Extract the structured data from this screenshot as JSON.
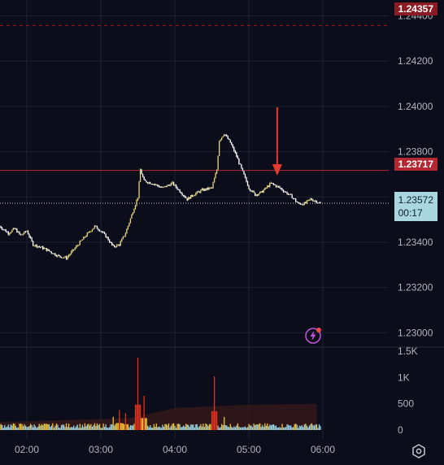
{
  "chart_data": {
    "type": "candlestick",
    "price_axis": {
      "ticks": [
        "1.24400",
        "1.24200",
        "1.24000",
        "1.23800",
        "1.23600",
        "1.23400",
        "1.23200",
        "1.23000"
      ],
      "range": [
        1.2294,
        1.2447
      ]
    },
    "time_axis": {
      "ticks": [
        "02:00",
        "03:00",
        "04:00",
        "05:00",
        "06:00"
      ]
    },
    "volume_axis": {
      "ticks": [
        "1.5K",
        "1K",
        "500",
        "0"
      ],
      "range": [
        0,
        1500
      ]
    },
    "price_labels": {
      "top": "1.24357",
      "level": "1.23717",
      "last": "1.23572",
      "countdown": "00:17"
    },
    "level_values": {
      "top": 1.24357,
      "level": 1.23717,
      "last": 1.23572
    },
    "close_path": [
      [
        "01:38",
        1.2347
      ],
      [
        "01:45",
        1.2344
      ],
      [
        "01:50",
        1.2346
      ],
      [
        "01:55",
        1.2343
      ],
      [
        "02:00",
        1.2345
      ],
      [
        "02:05",
        1.2339
      ],
      [
        "02:15",
        1.2337
      ],
      [
        "02:25",
        1.2334
      ],
      [
        "02:32",
        1.2333
      ],
      [
        "02:40",
        1.2338
      ],
      [
        "02:48",
        1.2343
      ],
      [
        "02:55",
        1.2347
      ],
      [
        "03:00",
        1.2345
      ],
      [
        "03:05",
        1.2342
      ],
      [
        "03:10",
        1.2338
      ],
      [
        "03:15",
        1.2339
      ],
      [
        "03:20",
        1.2344
      ],
      [
        "03:25",
        1.2352
      ],
      [
        "03:30",
        1.236
      ],
      [
        "03:32",
        1.2372
      ],
      [
        "03:35",
        1.2367
      ],
      [
        "03:42",
        1.2366
      ],
      [
        "03:50",
        1.2364
      ],
      [
        "03:58",
        1.2366
      ],
      [
        "04:05",
        1.2362
      ],
      [
        "04:10",
        1.2359
      ],
      [
        "04:15",
        1.2361
      ],
      [
        "04:22",
        1.2363
      ],
      [
        "04:30",
        1.2364
      ],
      [
        "04:34",
        1.2372
      ],
      [
        "04:36",
        1.2385
      ],
      [
        "04:40",
        1.2388
      ],
      [
        "04:45",
        1.2384
      ],
      [
        "04:50",
        1.2378
      ],
      [
        "04:55",
        1.2371
      ],
      [
        "05:00",
        1.2364
      ],
      [
        "05:05",
        1.2361
      ],
      [
        "05:10",
        1.2362
      ],
      [
        "05:18",
        1.2366
      ],
      [
        "05:25",
        1.2364
      ],
      [
        "05:30",
        1.2362
      ],
      [
        "05:35",
        1.236
      ],
      [
        "05:40",
        1.2357
      ],
      [
        "05:45",
        1.2357
      ],
      [
        "05:50",
        1.2359
      ],
      [
        "05:55",
        1.2358
      ],
      [
        "05:58",
        1.2357
      ]
    ],
    "volume_peaks": [
      [
        "03:10",
        250
      ],
      [
        "03:15",
        380
      ],
      [
        "03:20",
        320
      ],
      [
        "03:30",
        1380
      ],
      [
        "03:35",
        650
      ],
      [
        "04:30",
        320
      ],
      [
        "04:32",
        1020
      ],
      [
        "04:40",
        250
      ]
    ],
    "arrow_at": "05:23",
    "colors": {
      "background": "#0b0e1a",
      "up": "#e6d27a",
      "down": "#ffffff",
      "level_line": "#b22833",
      "top_label": "#8b1a22",
      "last_label": "#a9d6df",
      "arrow": "#e23a2e",
      "vol_low": "#9ad0e0",
      "vol_mid": "#f2c230",
      "vol_high": "#e0301e"
    }
  }
}
